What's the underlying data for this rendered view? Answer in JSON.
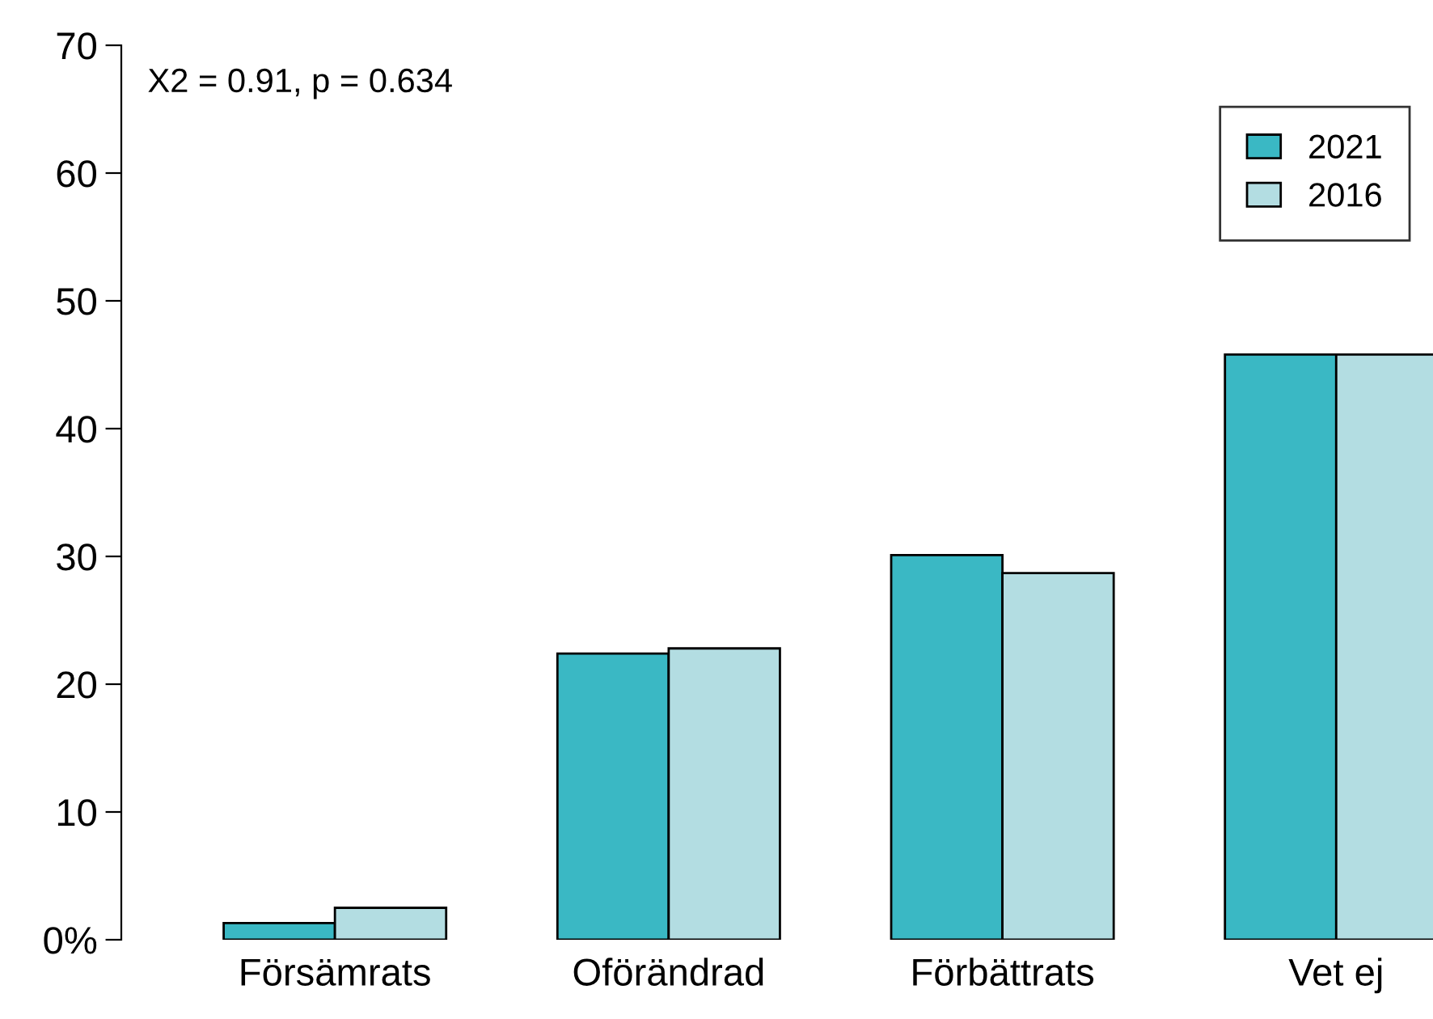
{
  "chart_data": {
    "type": "bar",
    "categories": [
      "Försämrats",
      "Oförändrad",
      "Förbättrats",
      "Vet ej"
    ],
    "series": [
      {
        "name": "2021",
        "color": "#3ab8c4",
        "values": [
          1.3,
          22.4,
          30.1,
          45.8
        ]
      },
      {
        "name": "2016",
        "color": "#b3dde2",
        "values": [
          2.5,
          22.8,
          28.7,
          45.8
        ]
      }
    ],
    "ylim": [
      0,
      70
    ],
    "yticks": [
      {
        "value": 0,
        "label": "0%"
      },
      10,
      20,
      30,
      40,
      50,
      60,
      70
    ],
    "annotations": [
      "X2 = 0.91, p = 0.634"
    ],
    "legend": "top right",
    "grid": false
  }
}
